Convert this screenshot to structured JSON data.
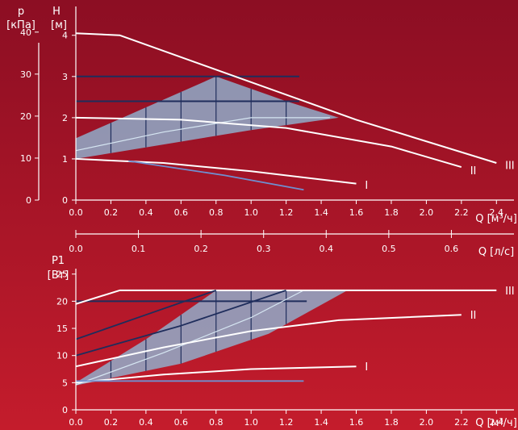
{
  "colors": {
    "bg_top": "#8c0e23",
    "bg_bottom": "#c41c2c",
    "axis": "#ffffff",
    "curve": "#ffffff",
    "band_fill": "#8fb6d4",
    "grid_dark": "#1f2d5c",
    "inner_light": "#d6e6f2",
    "blue_line": "#6f8fd0"
  },
  "labels": {
    "p_sym": "p",
    "p_unit": "[кПа]",
    "h_sym": "H",
    "h_unit": "[м]",
    "q_m3h": "Q [м³/ч]",
    "q_ls": "Q [л/с]",
    "p1_sym": "P1",
    "p1_unit": "[Вт]",
    "q_m3h_bottom": "Q [м³/ч]"
  },
  "chart_data": [
    {
      "type": "line",
      "xlabel": "Q [м³/ч]",
      "ylabel": "H [м]",
      "y2label": "p [кПа]",
      "x_ticks": [
        "0.0",
        "0.2",
        "0.4",
        "0.6",
        "0.8",
        "1.0",
        "1.2",
        "1.4",
        "1.6",
        "1.8",
        "2.0",
        "2.2",
        "2.4"
      ],
      "y_ticks": [
        "0",
        "1",
        "2",
        "3",
        "4"
      ],
      "y2_ticks": [
        "0",
        "10",
        "20",
        "30",
        "40"
      ],
      "xlim": [
        0,
        2.5
      ],
      "ylim": [
        0,
        4.7
      ],
      "secondary_x": {
        "label": "Q [л/с]",
        "ticks": [
          "0.0",
          "0.1",
          "0.2",
          "0.3",
          "0.4",
          "0.5",
          "0.6"
        ],
        "xlim": [
          0,
          0.7
        ]
      },
      "series": [
        {
          "name": "III",
          "x": [
            0,
            0.25,
            1.6,
            2.4
          ],
          "y": [
            4.05,
            4.0,
            1.95,
            0.9
          ],
          "label_at": [
            2.45,
            0.85
          ]
        },
        {
          "name": "II",
          "x": [
            0,
            0.6,
            1.2,
            1.8,
            2.2
          ],
          "y": [
            2.0,
            1.95,
            1.75,
            1.3,
            0.8
          ],
          "label_at": [
            2.25,
            0.72
          ]
        },
        {
          "name": "I",
          "x": [
            0,
            0.5,
            1.0,
            1.6
          ],
          "y": [
            1.0,
            0.9,
            0.7,
            0.4
          ],
          "label_at": [
            1.65,
            0.37
          ]
        },
        {
          "name": "",
          "x": [
            0.3,
            0.85,
            1.3
          ],
          "y": [
            0.95,
            0.6,
            0.25
          ],
          "style": "blue"
        }
      ],
      "band": {
        "upper_x": [
          0,
          0.8,
          1.2,
          1.5
        ],
        "upper_y": [
          1.5,
          3.0,
          2.4,
          2.0
        ],
        "lower_x": [
          0,
          0.5,
          1.0,
          1.5
        ],
        "lower_y": [
          1.0,
          1.35,
          1.7,
          2.0
        ],
        "inner_light_x": [
          0,
          0.5,
          1.0,
          1.45
        ],
        "inner_light_y": [
          1.2,
          1.65,
          2.0,
          2.0
        ],
        "grid_x": [
          0.2,
          0.4,
          0.6,
          0.8,
          1.0,
          1.2
        ],
        "grid_y": [
          3.0,
          2.4
        ]
      }
    },
    {
      "type": "line",
      "xlabel": "Q [м³/ч]",
      "ylabel": "P1 [Вт]",
      "x_ticks": [
        "0.0",
        "0.2",
        "0.4",
        "0.6",
        "0.8",
        "1.0",
        "1.2",
        "1.4",
        "1.6",
        "1.8",
        "2.0",
        "2.2",
        "2.4"
      ],
      "y_ticks": [
        "0",
        "5",
        "10",
        "15",
        "20",
        "25"
      ],
      "xlim": [
        0,
        2.5
      ],
      "ylim": [
        0,
        26
      ],
      "series": [
        {
          "name": "III",
          "x": [
            0,
            0.25,
            2.4
          ],
          "y": [
            19.5,
            22.0,
            22.0
          ],
          "label_at": [
            2.45,
            22.0
          ]
        },
        {
          "name": "II",
          "x": [
            0,
            0.5,
            1.0,
            1.5,
            2.2
          ],
          "y": [
            8.0,
            11.5,
            14.5,
            16.5,
            17.5
          ],
          "label_at": [
            2.25,
            17.5
          ]
        },
        {
          "name": "I",
          "x": [
            0,
            0.5,
            1.0,
            1.6
          ],
          "y": [
            5.0,
            6.5,
            7.5,
            8.0
          ],
          "label_at": [
            1.65,
            8.0
          ]
        },
        {
          "name": "",
          "x": [
            0,
            1.3
          ],
          "y": [
            5.3,
            5.3
          ],
          "style": "blue"
        },
        {
          "name": "",
          "x": [
            0,
            0.4,
            0.8
          ],
          "y": [
            13.0,
            17.5,
            22.0
          ],
          "style": "dark"
        },
        {
          "name": "",
          "x": [
            0,
            0.6,
            1.2
          ],
          "y": [
            10.0,
            15.5,
            22.0
          ],
          "style": "dark"
        }
      ],
      "band": {
        "upper_x": [
          0,
          0.4,
          0.8,
          1.55
        ],
        "upper_y": [
          5.0,
          13.0,
          22.0,
          22.0
        ],
        "lower_x": [
          0,
          0.6,
          1.1,
          1.55
        ],
        "lower_y": [
          4.5,
          8.5,
          14.0,
          22.0
        ],
        "inner_light_x": [
          0.0,
          0.5,
          1.0,
          1.3
        ],
        "inner_light_y": [
          4.6,
          10.5,
          17.0,
          22.0
        ],
        "grid_x": [
          0.2,
          0.4,
          0.6,
          0.8,
          1.0,
          1.2
        ],
        "grid_y": [
          20.0
        ]
      }
    }
  ]
}
